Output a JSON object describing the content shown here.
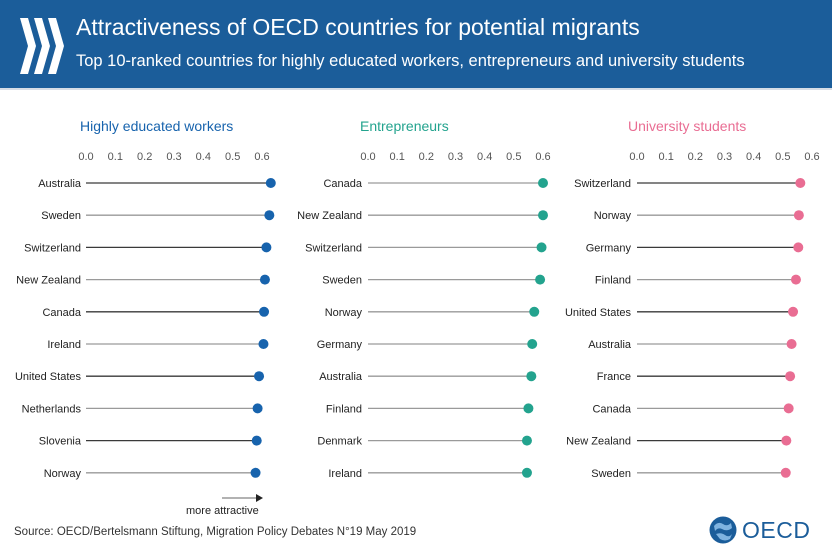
{
  "header": {
    "title": "Attractiveness of OECD countries for potential migrants",
    "subtitle": "Top 10-ranked countries for highly educated workers, entrepreneurs and university students"
  },
  "footer": {
    "source": "Source: OECD/Bertelsmann Stiftung, Migration Policy Debates N°19 May 2019",
    "more_attractive": "more attractive",
    "logo_text": "OECD"
  },
  "colors": {
    "header_bg": "#1b5d9a",
    "workers": "#1763ad",
    "entrepreneurs": "#23a38e",
    "students": "#e96d93",
    "stem_dark": "#3a3a3a",
    "stem_light": "#9a9a9a"
  },
  "chart_data": [
    {
      "type": "lollipop",
      "title": "Highly educated workers",
      "color": "#1763ad",
      "xlim": [
        0,
        0.6
      ],
      "ticks": [
        "0.0",
        "0.1",
        "0.2",
        "0.3",
        "0.4",
        "0.5",
        "0.6"
      ],
      "categories": [
        "Australia",
        "Sweden",
        "Switzerland",
        "New Zealand",
        "Canada",
        "Ireland",
        "United States",
        "Netherlands",
        "Slovenia",
        "Norway"
      ],
      "values": [
        0.63,
        0.625,
        0.615,
        0.61,
        0.607,
        0.605,
        0.59,
        0.585,
        0.582,
        0.578
      ]
    },
    {
      "type": "lollipop",
      "title": "Entrepreneurs",
      "color": "#23a38e",
      "xlim": [
        0,
        0.6
      ],
      "ticks": [
        "0.0",
        "0.1",
        "0.2",
        "0.3",
        "0.4",
        "0.5",
        "0.6"
      ],
      "categories": [
        "Canada",
        "New Zealand",
        "Switzerland",
        "Sweden",
        "Norway",
        "Germany",
        "Australia",
        "Finland",
        "Denmark",
        "Ireland"
      ],
      "values": [
        0.6,
        0.6,
        0.595,
        0.59,
        0.57,
        0.563,
        0.56,
        0.55,
        0.545,
        0.545
      ]
    },
    {
      "type": "lollipop",
      "title": "University students",
      "color": "#e96d93",
      "xlim": [
        0,
        0.6
      ],
      "ticks": [
        "0.0",
        "0.1",
        "0.2",
        "0.3",
        "0.4",
        "0.5",
        "0.6"
      ],
      "categories": [
        "Switzerland",
        "Norway",
        "Germany",
        "Finland",
        "United States",
        "Australia",
        "France",
        "Canada",
        "New Zealand",
        "Sweden"
      ],
      "values": [
        0.56,
        0.555,
        0.553,
        0.545,
        0.535,
        0.53,
        0.525,
        0.52,
        0.512,
        0.51
      ]
    }
  ]
}
